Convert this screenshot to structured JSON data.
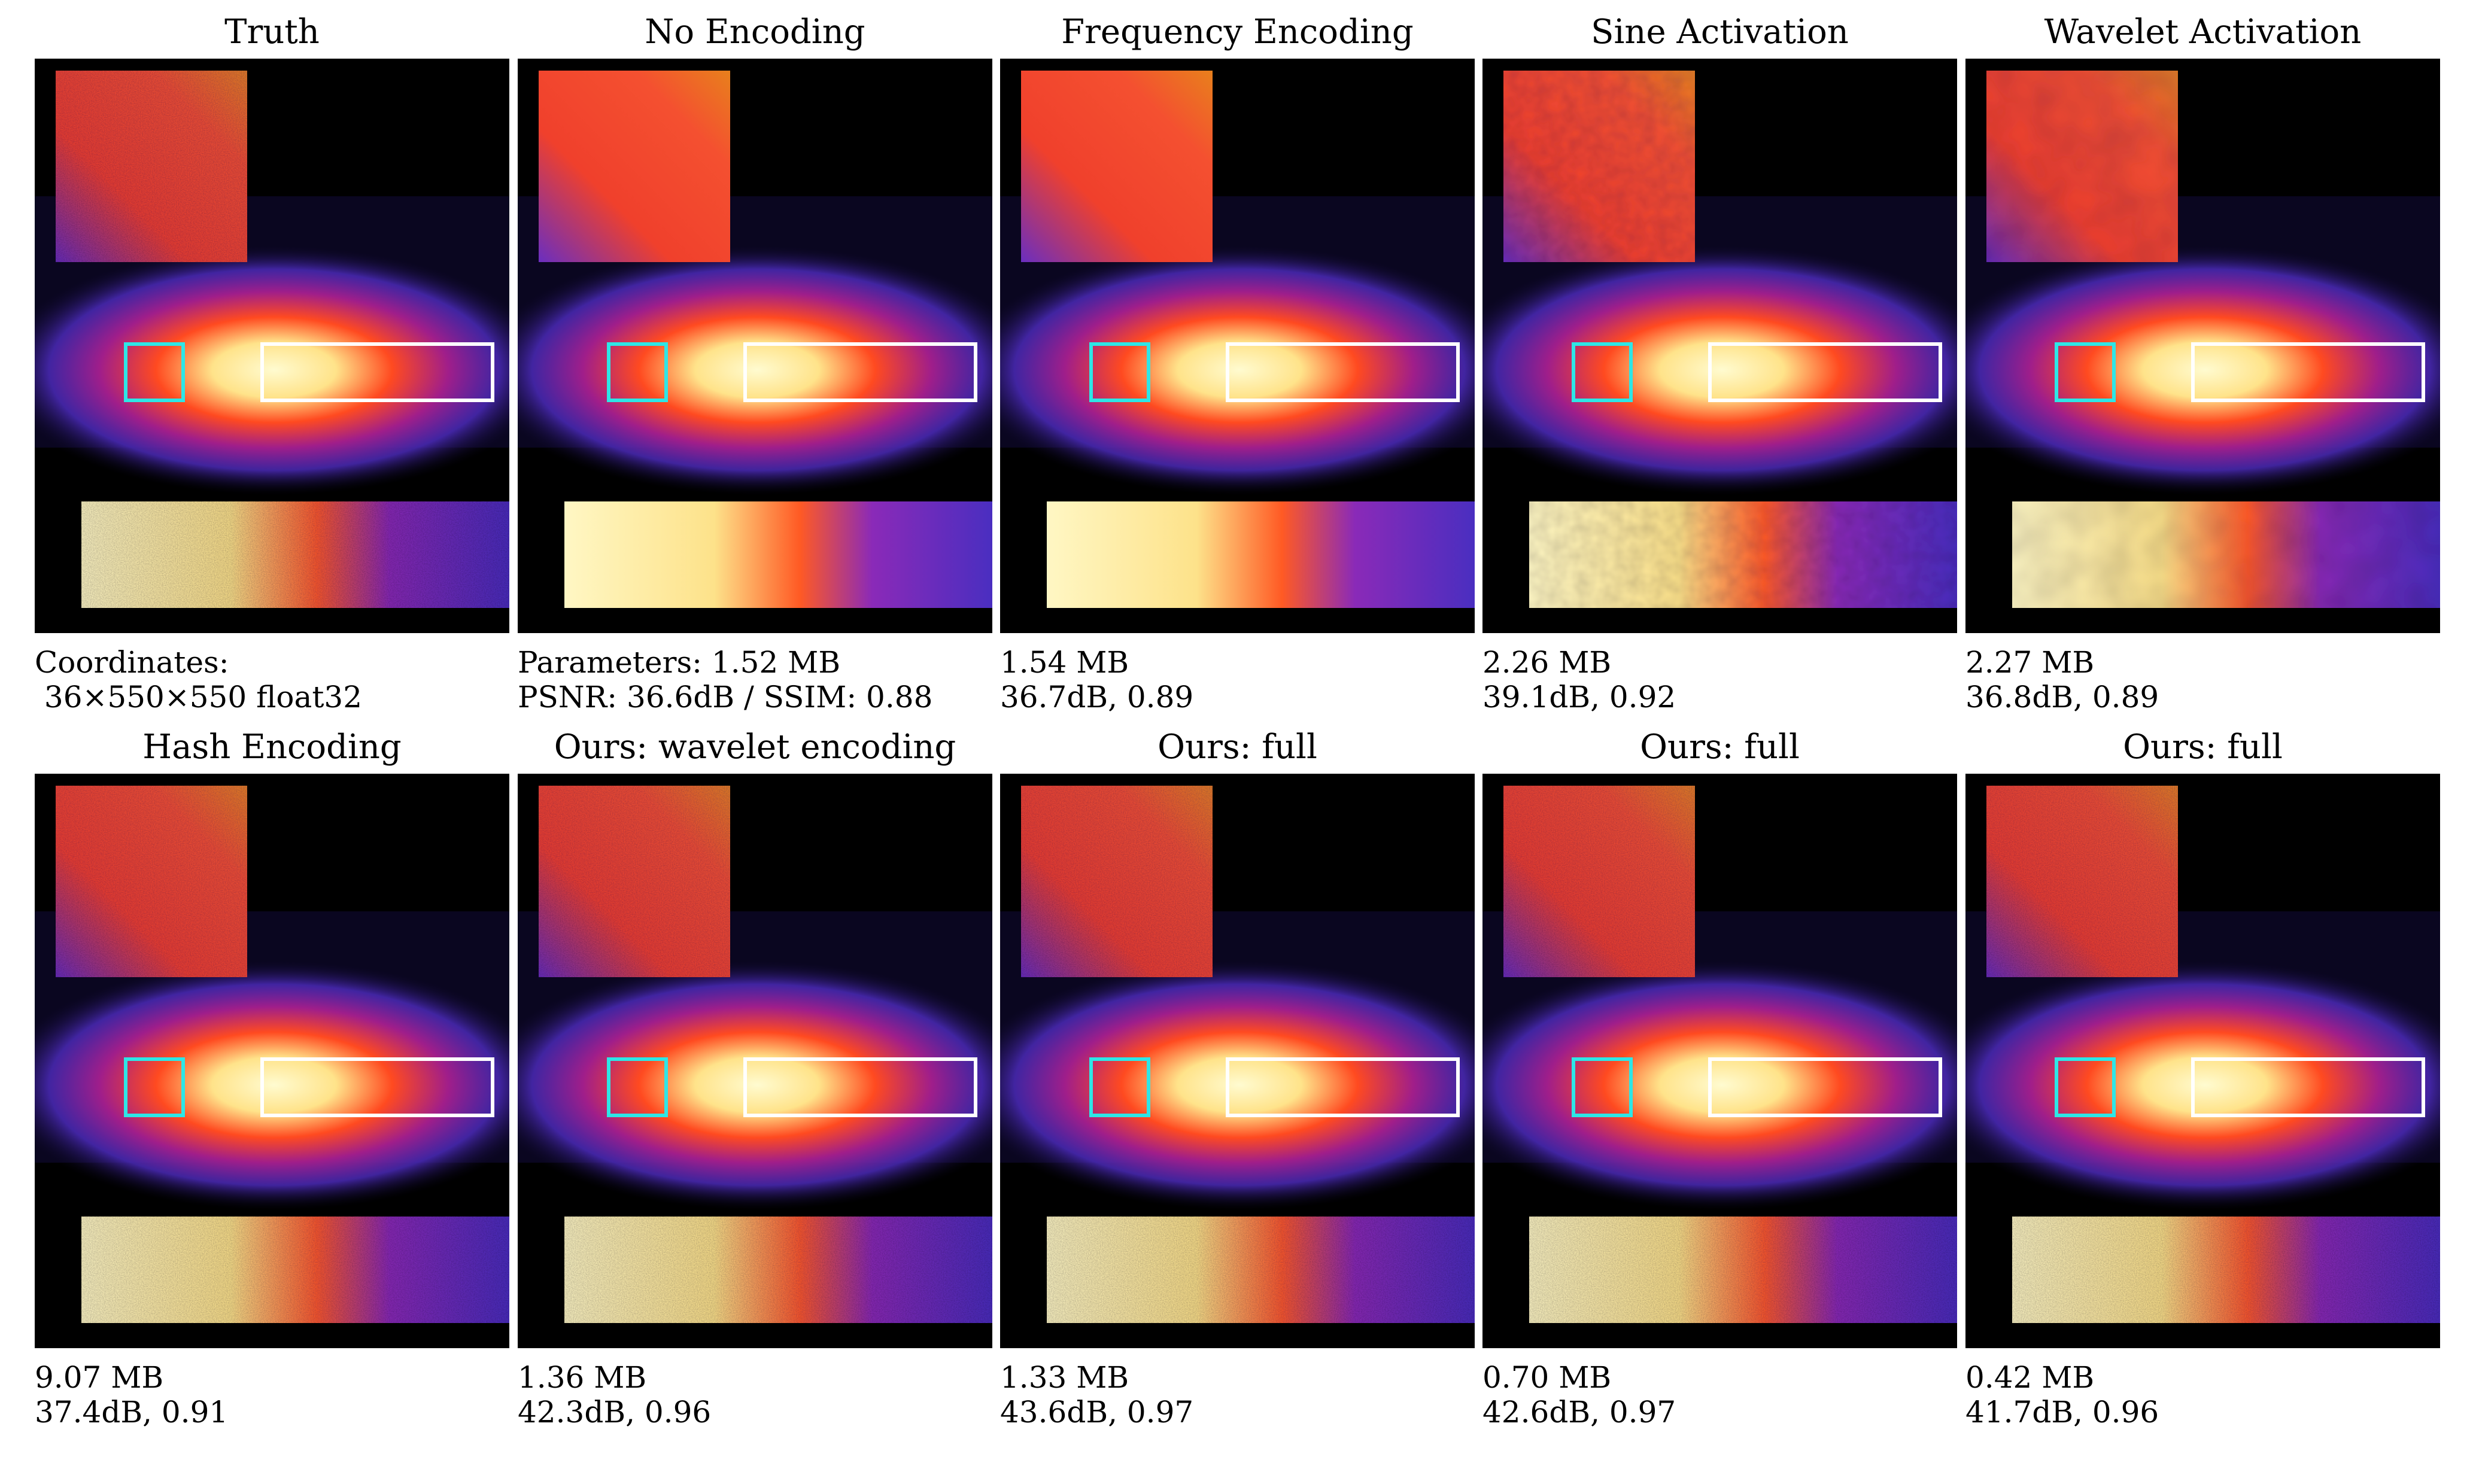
{
  "colors": {
    "background": "#ffffff",
    "blob_core": "#fffbd0",
    "blob_mid": "#ff4a20",
    "blob_outer": "#4b2ab8",
    "cyan_box": "#2ee6e6",
    "white_box": "#ffffff"
  },
  "panels": [
    {
      "title": "Truth",
      "caption_line1": "Coordinates:",
      "caption_line2": " 36×550×550 float32",
      "texture": "noisy"
    },
    {
      "title": "No Encoding",
      "caption_line1": "Parameters: 1.52 MB",
      "caption_line2": "PSNR: 36.6dB / SSIM: 0.88",
      "texture": "smooth"
    },
    {
      "title": "Frequency Encoding",
      "caption_line1": "1.54 MB",
      "caption_line2": "36.7dB, 0.89",
      "texture": "smooth"
    },
    {
      "title": "Sine Activation",
      "caption_line1": "2.26 MB",
      "caption_line2": "39.1dB, 0.92",
      "texture": "wavy"
    },
    {
      "title": "Wavelet Activation",
      "caption_line1": "2.27 MB",
      "caption_line2": "36.8dB, 0.89",
      "texture": "blotchy"
    },
    {
      "title": "Hash Encoding",
      "caption_line1": "9.07 MB",
      "caption_line2": "37.4dB, 0.91",
      "texture": "noisy"
    },
    {
      "title": "Ours: wavelet encoding",
      "caption_line1": "1.36 MB",
      "caption_line2": "42.3dB, 0.96",
      "texture": "noisy"
    },
    {
      "title": "Ours: full",
      "caption_line1": "1.33 MB",
      "caption_line2": "43.6dB, 0.97",
      "texture": "noisy"
    },
    {
      "title": "Ours: full",
      "caption_line1": "0.70 MB",
      "caption_line2": "42.6dB, 0.97",
      "texture": "noisy"
    },
    {
      "title": "Ours: full",
      "caption_line1": "0.42 MB",
      "caption_line2": "41.7dB, 0.96",
      "texture": "noisy"
    }
  ]
}
